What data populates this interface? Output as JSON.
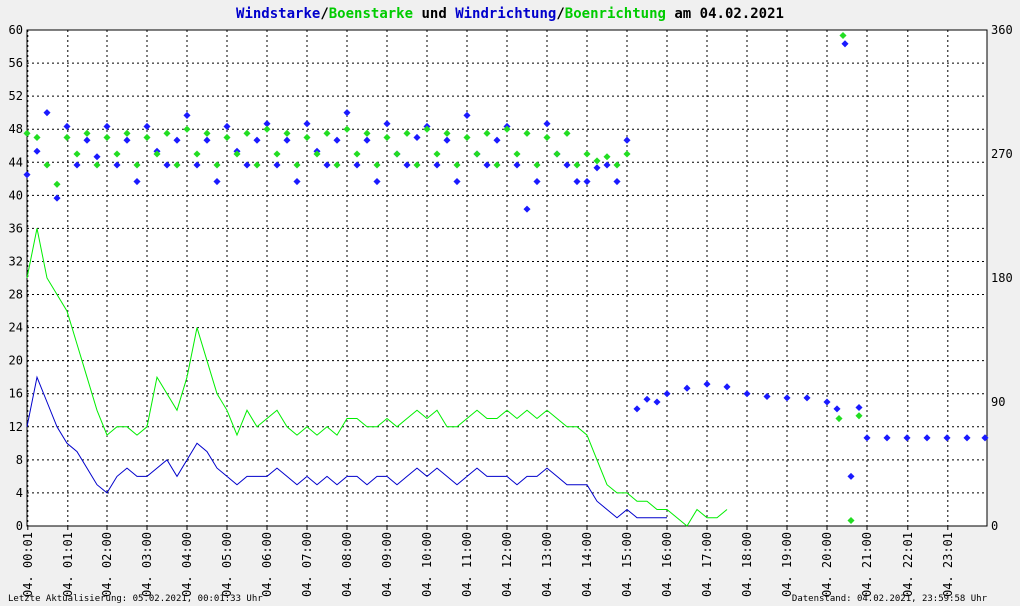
{
  "title": {
    "part1": "Windstarke",
    "sep1": "/",
    "part2": "Boenstarke",
    "part3": " und ",
    "part4": "Windrichtung",
    "sep2": "/",
    "part5": "Boenrichtung",
    "part6": " am 04.02.2021"
  },
  "footer": {
    "left": "Letzte Aktualisierung: 05.02.2021, 00:01:33 Uhr",
    "right": "Datenstand: 04.02.2021, 23:59:58 Uhr"
  },
  "colors": {
    "wind": "#0000cc",
    "gust": "#00ee00",
    "dir": "#1a1aff",
    "gustdir": "#22dd22",
    "grid": "#000000",
    "background": "#ffffff"
  },
  "chart_data": {
    "type": "line",
    "x_tick_labels": [
      "04. 00:01",
      "04. 01:01",
      "04. 02:00",
      "04. 03:00",
      "04. 04:00",
      "04. 05:00",
      "04. 06:00",
      "04. 07:00",
      "04. 08:00",
      "04. 09:00",
      "04. 10:00",
      "04. 11:00",
      "04. 12:00",
      "04. 13:00",
      "04. 14:00",
      "04. 15:00",
      "04. 16:00",
      "04. 17:00",
      "04. 18:00",
      "04. 19:00",
      "04. 20:00",
      "04. 21:00",
      "04. 22:01",
      "04. 23:01"
    ],
    "x_tick_hours": [
      0.02,
      1.02,
      2,
      3,
      4,
      5,
      6,
      7,
      8,
      9,
      10,
      11,
      12,
      13,
      14,
      15,
      16,
      17,
      18,
      19,
      20,
      21,
      22.02,
      23.02
    ],
    "xlim": [
      0,
      24
    ],
    "ylim_left": [
      0,
      60
    ],
    "ylim_right": [
      0,
      360
    ],
    "yticks_left": [
      0,
      4,
      8,
      12,
      16,
      20,
      24,
      28,
      32,
      36,
      40,
      44,
      48,
      52,
      56,
      60
    ],
    "yticks_right": [
      0,
      90,
      180,
      270,
      360
    ],
    "grid": true,
    "series": [
      {
        "name": "Windstarke",
        "kind": "line",
        "points": [
          [
            0,
            12
          ],
          [
            0.25,
            18
          ],
          [
            0.5,
            15
          ],
          [
            0.75,
            12
          ],
          [
            1,
            10
          ],
          [
            1.25,
            9
          ],
          [
            1.5,
            7
          ],
          [
            1.75,
            5
          ],
          [
            2,
            4
          ],
          [
            2.25,
            6
          ],
          [
            2.5,
            7
          ],
          [
            2.75,
            6
          ],
          [
            3,
            6
          ],
          [
            3.25,
            7
          ],
          [
            3.5,
            8
          ],
          [
            3.75,
            6
          ],
          [
            4,
            8
          ],
          [
            4.25,
            10
          ],
          [
            4.5,
            9
          ],
          [
            4.75,
            7
          ],
          [
            5,
            6
          ],
          [
            5.25,
            5
          ],
          [
            5.5,
            6
          ],
          [
            5.75,
            6
          ],
          [
            6,
            6
          ],
          [
            6.25,
            7
          ],
          [
            6.5,
            6
          ],
          [
            6.75,
            5
          ],
          [
            7,
            6
          ],
          [
            7.25,
            5
          ],
          [
            7.5,
            6
          ],
          [
            7.75,
            5
          ],
          [
            8,
            6
          ],
          [
            8.25,
            6
          ],
          [
            8.5,
            5
          ],
          [
            8.75,
            6
          ],
          [
            9,
            6
          ],
          [
            9.25,
            5
          ],
          [
            9.5,
            6
          ],
          [
            9.75,
            7
          ],
          [
            10,
            6
          ],
          [
            10.25,
            7
          ],
          [
            10.5,
            6
          ],
          [
            10.75,
            5
          ],
          [
            11,
            6
          ],
          [
            11.25,
            7
          ],
          [
            11.5,
            6
          ],
          [
            11.75,
            6
          ],
          [
            12,
            6
          ],
          [
            12.25,
            5
          ],
          [
            12.5,
            6
          ],
          [
            12.75,
            6
          ],
          [
            13,
            7
          ],
          [
            13.25,
            6
          ],
          [
            13.5,
            5
          ],
          [
            13.75,
            5
          ],
          [
            14,
            5
          ],
          [
            14.25,
            3
          ],
          [
            14.5,
            2
          ],
          [
            14.75,
            1
          ],
          [
            15,
            2
          ],
          [
            15.25,
            1
          ],
          [
            15.5,
            1
          ],
          [
            15.75,
            1
          ],
          [
            16,
            1
          ]
        ]
      },
      {
        "name": "Boenstarke",
        "kind": "line",
        "points": [
          [
            0,
            30
          ],
          [
            0.25,
            36
          ],
          [
            0.5,
            30
          ],
          [
            0.75,
            28
          ],
          [
            1,
            26
          ],
          [
            1.25,
            22
          ],
          [
            1.5,
            18
          ],
          [
            1.75,
            14
          ],
          [
            2,
            11
          ],
          [
            2.25,
            12
          ],
          [
            2.5,
            12
          ],
          [
            2.75,
            11
          ],
          [
            3,
            12
          ],
          [
            3.25,
            18
          ],
          [
            3.5,
            16
          ],
          [
            3.75,
            14
          ],
          [
            4,
            18
          ],
          [
            4.25,
            24
          ],
          [
            4.5,
            20
          ],
          [
            4.75,
            16
          ],
          [
            5,
            14
          ],
          [
            5.25,
            11
          ],
          [
            5.5,
            14
          ],
          [
            5.75,
            12
          ],
          [
            6,
            13
          ],
          [
            6.25,
            14
          ],
          [
            6.5,
            12
          ],
          [
            6.75,
            11
          ],
          [
            7,
            12
          ],
          [
            7.25,
            11
          ],
          [
            7.5,
            12
          ],
          [
            7.75,
            11
          ],
          [
            8,
            13
          ],
          [
            8.25,
            13
          ],
          [
            8.5,
            12
          ],
          [
            8.75,
            12
          ],
          [
            9,
            13
          ],
          [
            9.25,
            12
          ],
          [
            9.5,
            13
          ],
          [
            9.75,
            14
          ],
          [
            10,
            13
          ],
          [
            10.25,
            14
          ],
          [
            10.5,
            12
          ],
          [
            10.75,
            12
          ],
          [
            11,
            13
          ],
          [
            11.25,
            14
          ],
          [
            11.5,
            13
          ],
          [
            11.75,
            13
          ],
          [
            12,
            14
          ],
          [
            12.25,
            13
          ],
          [
            12.5,
            14
          ],
          [
            12.75,
            13
          ],
          [
            13,
            14
          ],
          [
            13.25,
            13
          ],
          [
            13.5,
            12
          ],
          [
            13.75,
            12
          ],
          [
            14,
            11
          ],
          [
            14.25,
            8
          ],
          [
            14.5,
            5
          ],
          [
            14.75,
            4
          ],
          [
            15,
            4
          ],
          [
            15.25,
            3
          ],
          [
            15.5,
            3
          ],
          [
            15.75,
            2
          ],
          [
            16,
            2
          ],
          [
            16.25,
            1
          ],
          [
            16.5,
            0
          ],
          [
            16.75,
            2
          ],
          [
            17,
            1
          ],
          [
            17.25,
            1
          ],
          [
            17.5,
            2
          ]
        ]
      },
      {
        "name": "Windrichtung",
        "kind": "scatter",
        "axis": "right",
        "points": [
          [
            0,
            255
          ],
          [
            0.25,
            272
          ],
          [
            0.5,
            300
          ],
          [
            0.75,
            238
          ],
          [
            1,
            290
          ],
          [
            1.25,
            262
          ],
          [
            1.5,
            280
          ],
          [
            1.75,
            268
          ],
          [
            2,
            290
          ],
          [
            2.25,
            262
          ],
          [
            2.5,
            280
          ],
          [
            2.75,
            250
          ],
          [
            3,
            290
          ],
          [
            3.25,
            272
          ],
          [
            3.5,
            262
          ],
          [
            3.75,
            280
          ],
          [
            4,
            298
          ],
          [
            4.25,
            262
          ],
          [
            4.5,
            280
          ],
          [
            4.75,
            250
          ],
          [
            5,
            290
          ],
          [
            5.25,
            272
          ],
          [
            5.5,
            262
          ],
          [
            5.75,
            280
          ],
          [
            6,
            292
          ],
          [
            6.25,
            262
          ],
          [
            6.5,
            280
          ],
          [
            6.75,
            250
          ],
          [
            7,
            292
          ],
          [
            7.25,
            272
          ],
          [
            7.5,
            262
          ],
          [
            7.75,
            280
          ],
          [
            8,
            300
          ],
          [
            8.25,
            262
          ],
          [
            8.5,
            280
          ],
          [
            8.75,
            250
          ],
          [
            9,
            292
          ],
          [
            9.25,
            270
          ],
          [
            9.5,
            262
          ],
          [
            9.75,
            282
          ],
          [
            10,
            290
          ],
          [
            10.25,
            262
          ],
          [
            10.5,
            280
          ],
          [
            10.75,
            250
          ],
          [
            11,
            298
          ],
          [
            11.25,
            270
          ],
          [
            11.5,
            262
          ],
          [
            11.75,
            280
          ],
          [
            12,
            290
          ],
          [
            12.25,
            262
          ],
          [
            12.5,
            230
          ],
          [
            12.75,
            250
          ],
          [
            13,
            292
          ],
          [
            13.25,
            270
          ],
          [
            13.5,
            262
          ],
          [
            13.75,
            250
          ],
          [
            14,
            250
          ],
          [
            14.25,
            260
          ],
          [
            14.5,
            262
          ],
          [
            14.75,
            250
          ],
          [
            15,
            280
          ],
          [
            15.25,
            85
          ],
          [
            15.5,
            92
          ],
          [
            15.75,
            90
          ],
          [
            16,
            96
          ],
          [
            16.5,
            100
          ],
          [
            17,
            103
          ],
          [
            17.5,
            101
          ],
          [
            18,
            96
          ],
          [
            18.5,
            94
          ],
          [
            19,
            93
          ],
          [
            19.5,
            93
          ],
          [
            20,
            90
          ],
          [
            20.25,
            85
          ],
          [
            20.45,
            350
          ],
          [
            20.6,
            36
          ],
          [
            20.8,
            86
          ],
          [
            21,
            64
          ],
          [
            21.5,
            64
          ],
          [
            22,
            64
          ],
          [
            22.5,
            64
          ],
          [
            23,
            64
          ],
          [
            23.5,
            64
          ],
          [
            23.95,
            64
          ]
        ]
      },
      {
        "name": "Boenrichtung",
        "kind": "scatter",
        "axis": "right",
        "points": [
          [
            0,
            285
          ],
          [
            0.25,
            282
          ],
          [
            0.5,
            262
          ],
          [
            0.75,
            248
          ],
          [
            1,
            282
          ],
          [
            1.25,
            270
          ],
          [
            1.5,
            285
          ],
          [
            1.75,
            262
          ],
          [
            2,
            282
          ],
          [
            2.25,
            270
          ],
          [
            2.5,
            285
          ],
          [
            2.75,
            262
          ],
          [
            3,
            282
          ],
          [
            3.25,
            270
          ],
          [
            3.5,
            285
          ],
          [
            3.75,
            262
          ],
          [
            4,
            288
          ],
          [
            4.25,
            270
          ],
          [
            4.5,
            285
          ],
          [
            4.75,
            262
          ],
          [
            5,
            282
          ],
          [
            5.25,
            270
          ],
          [
            5.5,
            285
          ],
          [
            5.75,
            262
          ],
          [
            6,
            288
          ],
          [
            6.25,
            270
          ],
          [
            6.5,
            285
          ],
          [
            6.75,
            262
          ],
          [
            7,
            282
          ],
          [
            7.25,
            270
          ],
          [
            7.5,
            285
          ],
          [
            7.75,
            262
          ],
          [
            8,
            288
          ],
          [
            8.25,
            270
          ],
          [
            8.5,
            285
          ],
          [
            8.75,
            262
          ],
          [
            9,
            282
          ],
          [
            9.25,
            270
          ],
          [
            9.5,
            285
          ],
          [
            9.75,
            262
          ],
          [
            10,
            288
          ],
          [
            10.25,
            270
          ],
          [
            10.5,
            285
          ],
          [
            10.75,
            262
          ],
          [
            11,
            282
          ],
          [
            11.25,
            270
          ],
          [
            11.5,
            285
          ],
          [
            11.75,
            262
          ],
          [
            12,
            288
          ],
          [
            12.25,
            270
          ],
          [
            12.5,
            285
          ],
          [
            12.75,
            262
          ],
          [
            13,
            282
          ],
          [
            13.25,
            270
          ],
          [
            13.5,
            285
          ],
          [
            13.75,
            262
          ],
          [
            14,
            270
          ],
          [
            14.25,
            265
          ],
          [
            14.5,
            268
          ],
          [
            14.75,
            262
          ],
          [
            15,
            270
          ],
          [
            20.3,
            78
          ],
          [
            20.4,
            356
          ],
          [
            20.6,
            4
          ],
          [
            20.8,
            80
          ]
        ]
      }
    ]
  }
}
